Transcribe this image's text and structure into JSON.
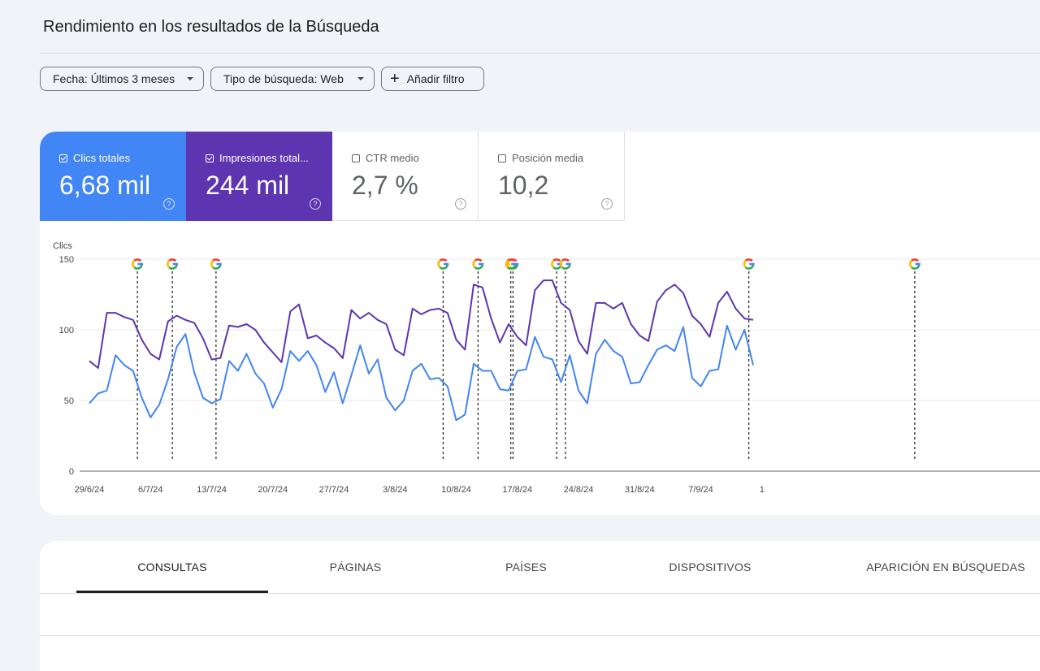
{
  "page_title": "Rendimiento en los resultados de la Búsqueda",
  "filters": {
    "date": "Fecha: Últimos 3 meses",
    "search_type": "Tipo de búsqueda: Web",
    "add_filter": "Añadir filtro"
  },
  "metrics": {
    "clicks": {
      "label": "Clics totales",
      "value": "6,68 mil",
      "checked": true,
      "color": "#4285f4"
    },
    "impressions": {
      "label": "Impresiones total...",
      "value": "244 mil",
      "checked": true,
      "color": "#5e35b1"
    },
    "ctr": {
      "label": "CTR medio",
      "value": "2,7 %",
      "checked": false
    },
    "position": {
      "label": "Posición media",
      "value": "10,2",
      "checked": false
    }
  },
  "tabs": [
    {
      "label": "CONSULTAS",
      "active": true
    },
    {
      "label": "PÁGINAS",
      "active": false
    },
    {
      "label": "PAÍSES",
      "active": false
    },
    {
      "label": "DISPOSITIVOS",
      "active": false
    },
    {
      "label": "APARICIÓN EN BÚSQUEDAS",
      "active": false
    }
  ],
  "chart_data": {
    "type": "line",
    "ylabel": "Clics",
    "ylim": [
      0,
      150
    ],
    "y_ticks": [
      0,
      50,
      100,
      150
    ],
    "x_ticks": [
      "29/6/24",
      "6/7/24",
      "13/7/24",
      "20/7/24",
      "27/7/24",
      "3/8/24",
      "10/8/24",
      "17/8/24",
      "24/8/24",
      "31/8/24",
      "7/9/24",
      "1"
    ],
    "start_date": "29/6/24",
    "grid": true,
    "series": [
      {
        "name": "Clics totales",
        "color": "#4285f4",
        "values": [
          48,
          55,
          57,
          82,
          75,
          71,
          52,
          38,
          47,
          65,
          88,
          97,
          70,
          52,
          48,
          51,
          78,
          71,
          83,
          69,
          62,
          45,
          58,
          85,
          78,
          85,
          75,
          56,
          70,
          48,
          68,
          89,
          69,
          79,
          52,
          43,
          50,
          71,
          76,
          65,
          66,
          60,
          36,
          40,
          76,
          71,
          71,
          58,
          57,
          71,
          72,
          95,
          81,
          79,
          63,
          82,
          57,
          48,
          83,
          93,
          85,
          81,
          62,
          63,
          75,
          86,
          89,
          85,
          102,
          66,
          60,
          71,
          72,
          103,
          86,
          100,
          75
        ]
      },
      {
        "name": "Impresiones totales",
        "color": "#5e35b1",
        "values": [
          78,
          73,
          112,
          112,
          109,
          107,
          93,
          83,
          79,
          106,
          110,
          107,
          105,
          94,
          79,
          80,
          103,
          102,
          104,
          100,
          91,
          84,
          77,
          113,
          118,
          94,
          96,
          91,
          87,
          80,
          114,
          108,
          112,
          107,
          104,
          86,
          82,
          115,
          111,
          114,
          115,
          112,
          93,
          86,
          132,
          130,
          108,
          91,
          104,
          95,
          89,
          128,
          135,
          135,
          119,
          114,
          92,
          83,
          119,
          119,
          115,
          119,
          104,
          96,
          92,
          120,
          128,
          132,
          126,
          110,
          104,
          95,
          119,
          127,
          115,
          108,
          107
        ]
      }
    ],
    "events_day_offsets": [
      5.5,
      9.5,
      14.5,
      40.5,
      44.5,
      48.25,
      48.5,
      53.5,
      54.5,
      75.5,
      94.5
    ]
  }
}
